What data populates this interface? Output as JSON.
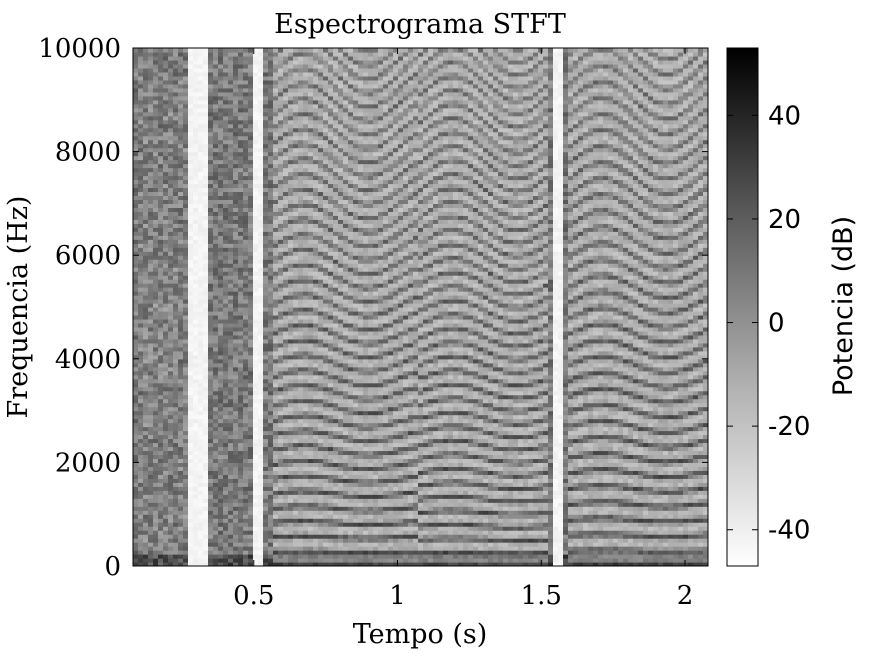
{
  "chart_data": {
    "type": "heatmap",
    "title": "Espectrograma STFT",
    "xlabel": "Tempo (s)",
    "ylabel": "Frequencia (Hz)",
    "xlim": [
      0.08,
      2.08
    ],
    "ylim": [
      0,
      10000
    ],
    "xticks": [
      0.5,
      1,
      1.5,
      2
    ],
    "xtick_labels": [
      "0.5",
      "1",
      "1.5",
      "2"
    ],
    "yticks": [
      0,
      2000,
      4000,
      6000,
      8000,
      10000
    ],
    "ytick_labels": [
      "0",
      "2000",
      "4000",
      "6000",
      "8000",
      "10000"
    ],
    "colormap": "gray_reversed",
    "colorbar": {
      "label": "Potencia (dB)",
      "range": [
        -47,
        53
      ],
      "ticks": [
        -40,
        -20,
        0,
        20,
        40
      ],
      "tick_labels": [
        "-40",
        "-20",
        "0",
        "20",
        "40"
      ]
    },
    "silence_intervals_s": [
      [
        0.27,
        0.34
      ],
      [
        0.5,
        0.54
      ],
      [
        1.54,
        1.58
      ]
    ],
    "harmonic_segments": [
      {
        "t_start": 0.56,
        "t_end": 1.07,
        "f0_hz": 280
      },
      {
        "t_start": 1.08,
        "t_end": 1.52,
        "f0_hz": 260
      },
      {
        "t_start": 1.6,
        "t_end": 2.08,
        "f0_hz": 300
      }
    ]
  }
}
